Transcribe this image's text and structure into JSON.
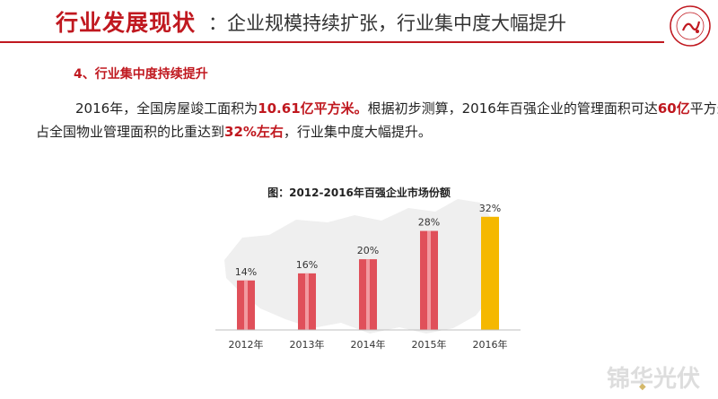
{
  "slide": {
    "title_main": "行业发展现状",
    "title_sub": "：企业规模持续扩张，行业集中度大幅提升",
    "section_heading": "4、行业集中度持续提升",
    "paragraph": {
      "l1_a": "2016年，全国房屋竣工面积为",
      "l1_b": "10.61亿平方米。",
      "l1_c": "根据初步测算，2016年百强企业的管理面积可达",
      "l1_d": "60亿",
      "l1_e": "平方米，",
      "l2_a": "占全国物业管理面积的比重达到",
      "l2_b": "32%左右",
      "l2_c": "，行业集中度大幅提升。"
    },
    "chart_caption": "图：2012-2016年百强企业市场份额"
  },
  "colors": {
    "brand_red": "#c0181f",
    "bar_red": "#e0505a",
    "bar_highlight": "#f5b800",
    "map_bg": "#efefef"
  },
  "chart_data": {
    "type": "bar",
    "title": "图：2012-2016年百强企业市场份额",
    "categories": [
      "2012年",
      "2013年",
      "2014年",
      "2015年",
      "2016年"
    ],
    "values": [
      14,
      16,
      20,
      28,
      32
    ],
    "value_labels": [
      "14%",
      "16%",
      "20%",
      "28%",
      "32%"
    ],
    "highlight_index": 4,
    "ylim": [
      0,
      36
    ],
    "xlabel": "",
    "ylabel": "",
    "grid": false,
    "legend": "none"
  }
}
